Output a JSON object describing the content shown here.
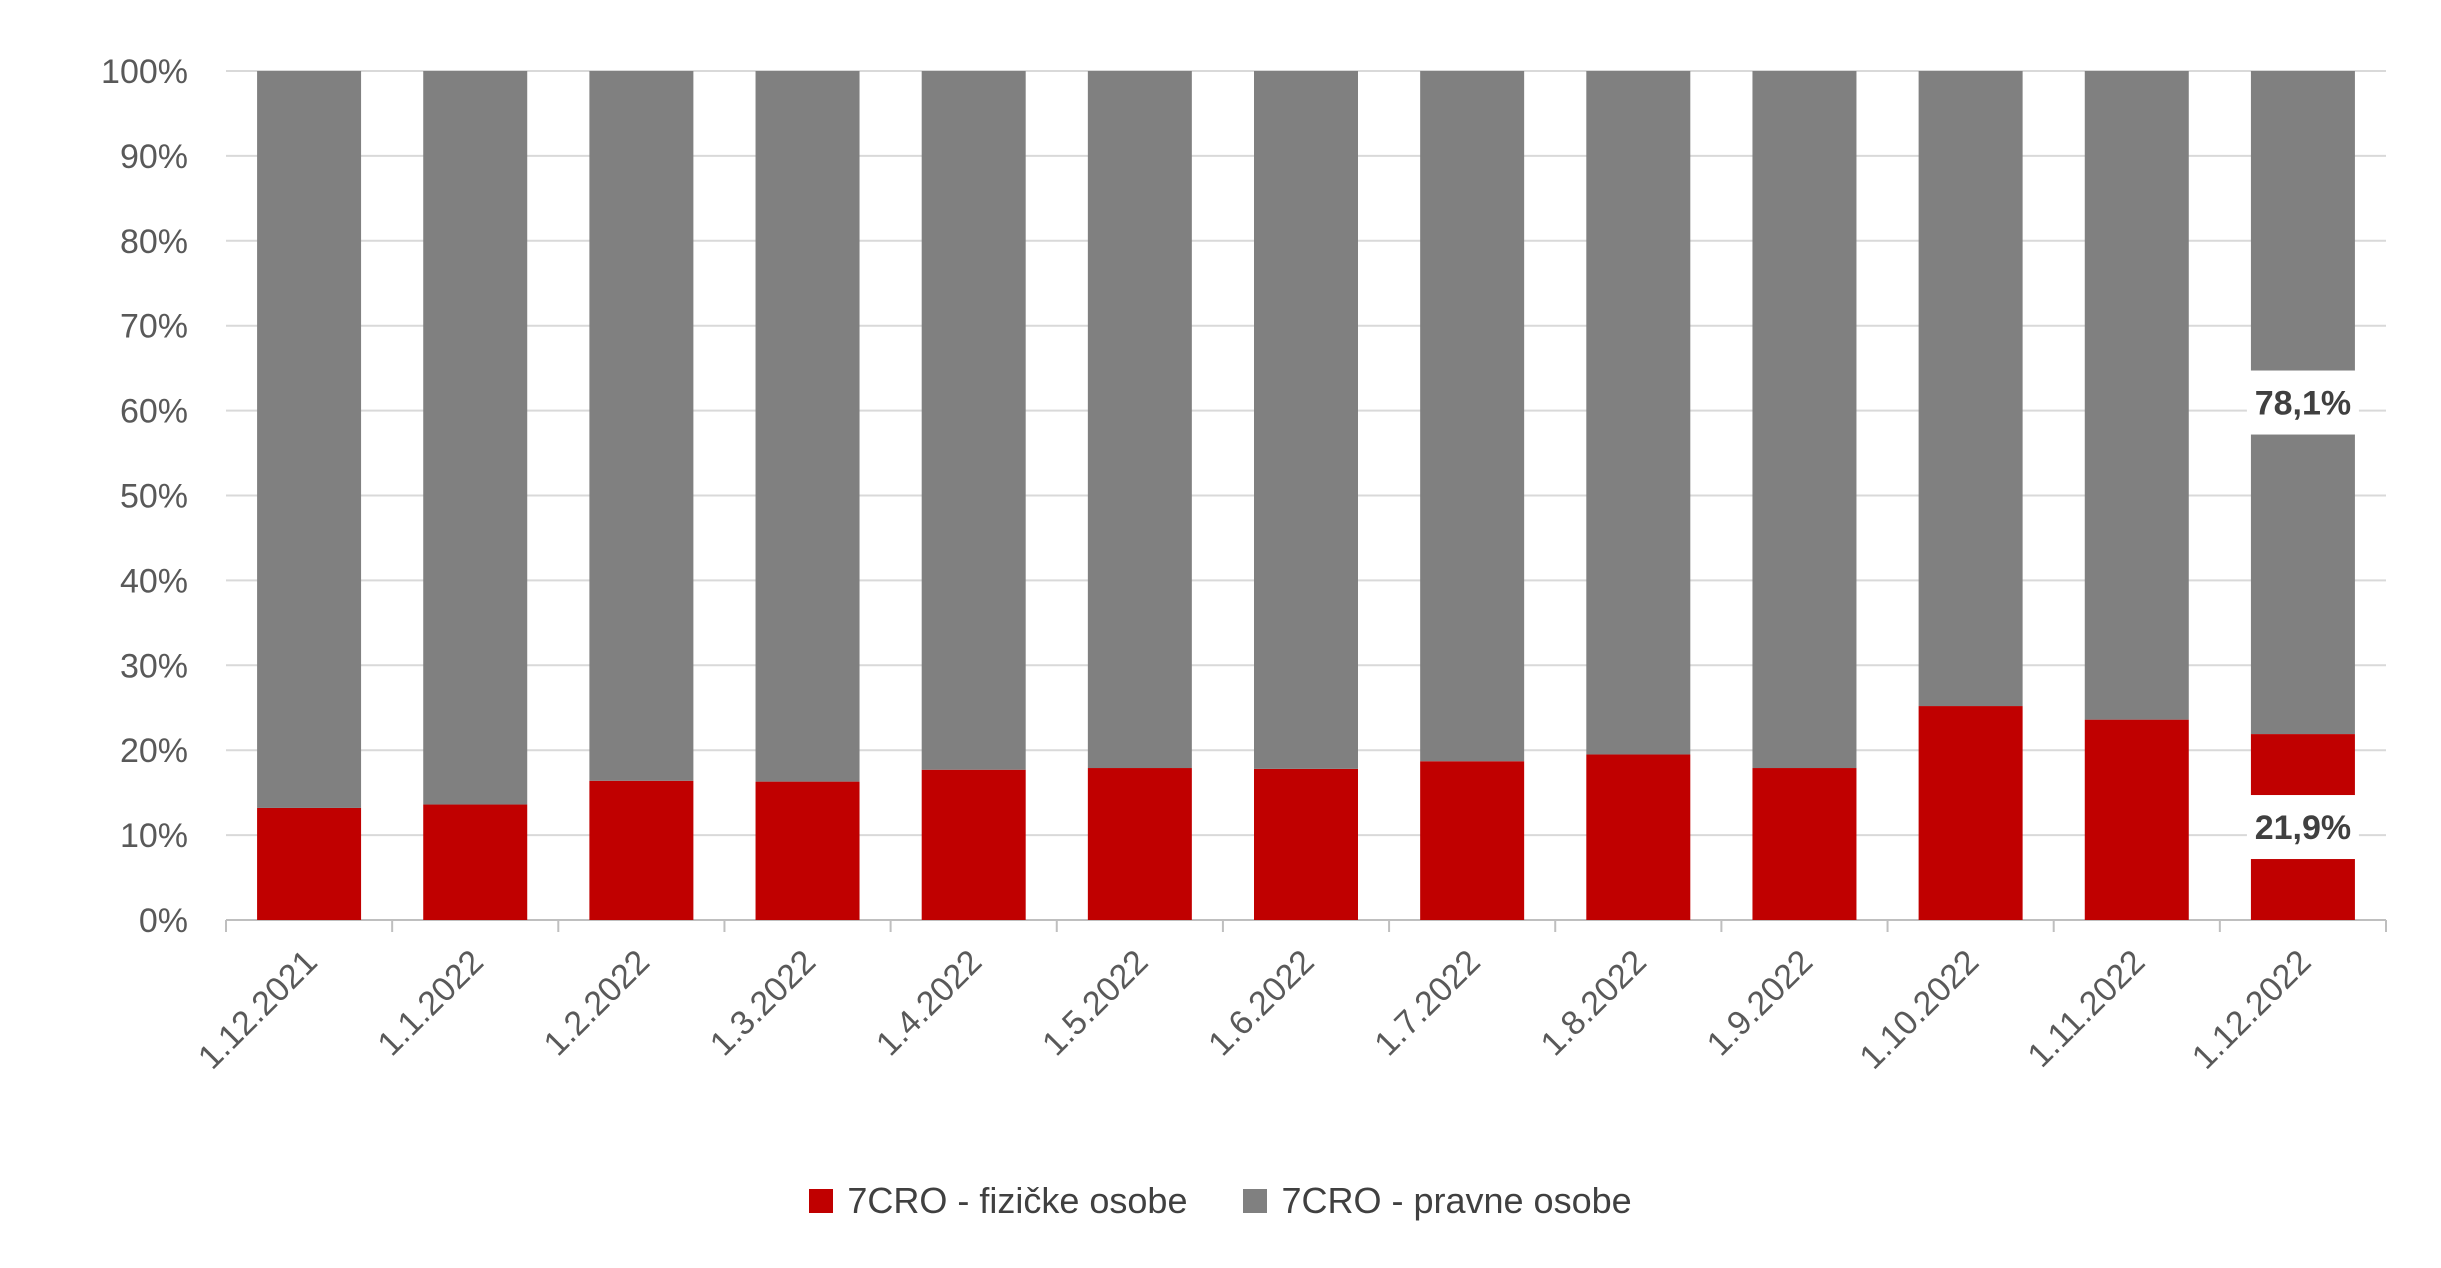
{
  "chart_data": {
    "type": "bar",
    "stacked": true,
    "percent_stacked": true,
    "categories": [
      "1.12.2021",
      "1.1.2022",
      "1.2.2022",
      "1.3.2022",
      "1.4.2022",
      "1.5.2022",
      "1.6.2022",
      "1.7.2022",
      "1.8.2022",
      "1.9.2022",
      "1.10.2022",
      "1.11.2022",
      "1.12.2022"
    ],
    "series": [
      {
        "name": "7CRO - fizičke osobe",
        "color": "#C00000",
        "values": [
          13.2,
          13.6,
          16.4,
          16.3,
          17.7,
          17.9,
          17.8,
          18.7,
          19.5,
          17.9,
          25.2,
          23.6,
          21.9
        ]
      },
      {
        "name": "7CRO - pravne osobe",
        "color": "#808080",
        "values": [
          86.8,
          86.4,
          83.6,
          83.7,
          82.3,
          82.1,
          82.2,
          81.3,
          80.5,
          82.1,
          74.8,
          76.4,
          78.1
        ]
      }
    ],
    "data_labels": [
      {
        "category": "1.12.2022",
        "series": "7CRO - fizičke osobe",
        "text": "21,9%"
      },
      {
        "category": "1.12.2022",
        "series": "7CRO - pravne osobe",
        "text": "78,1%"
      }
    ],
    "y_ticks": [
      "0%",
      "10%",
      "20%",
      "30%",
      "40%",
      "50%",
      "60%",
      "70%",
      "80%",
      "90%",
      "100%"
    ],
    "ylim": [
      0,
      100
    ],
    "grid": true,
    "legend_position": "bottom",
    "title": "",
    "xlabel": "",
    "ylabel": ""
  }
}
